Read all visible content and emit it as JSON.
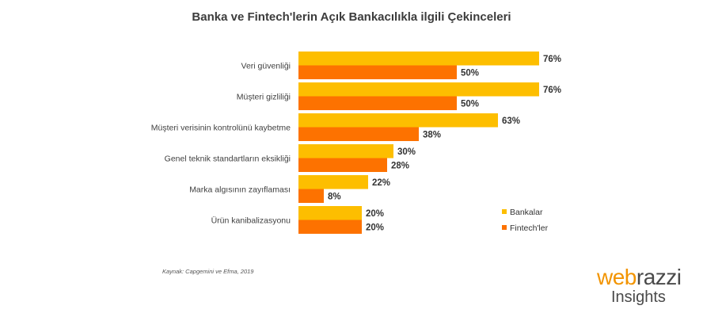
{
  "colors": {
    "bankalar": "#fdbe00",
    "fintechler": "#fd7200"
  },
  "chart_data": {
    "type": "bar",
    "orientation": "horizontal",
    "title": "Banka ve Fintech'lerin Açık Bankacılıkla ilgili Çekinceleri",
    "categories": [
      "Veri güvenliği",
      "Müşteri gizliliği",
      "Müşteri verisinin kontrolünü kaybetme",
      "Genel teknik standartların eksikliği",
      "Marka algısının zayıflaması",
      "Ürün kanibalizasyonu"
    ],
    "series": [
      {
        "name": "Bankalar",
        "values": [
          76,
          76,
          63,
          30,
          22,
          20
        ]
      },
      {
        "name": "Fintech'ler",
        "values": [
          50,
          50,
          38,
          28,
          8,
          20
        ]
      }
    ],
    "value_labels": [
      [
        "76%",
        "76%",
        "63%",
        "30%",
        "22%",
        "20%"
      ],
      [
        "50%",
        "50%",
        "38%",
        "28%",
        "8%",
        "20%"
      ]
    ],
    "xlim": [
      0,
      100
    ],
    "grid": false,
    "legend_position": "right"
  },
  "source": "Kaynak: Capgemini ve Efma, 2019",
  "logo": {
    "part1": "web",
    "part2": "razzi",
    "line2": "Insights"
  }
}
